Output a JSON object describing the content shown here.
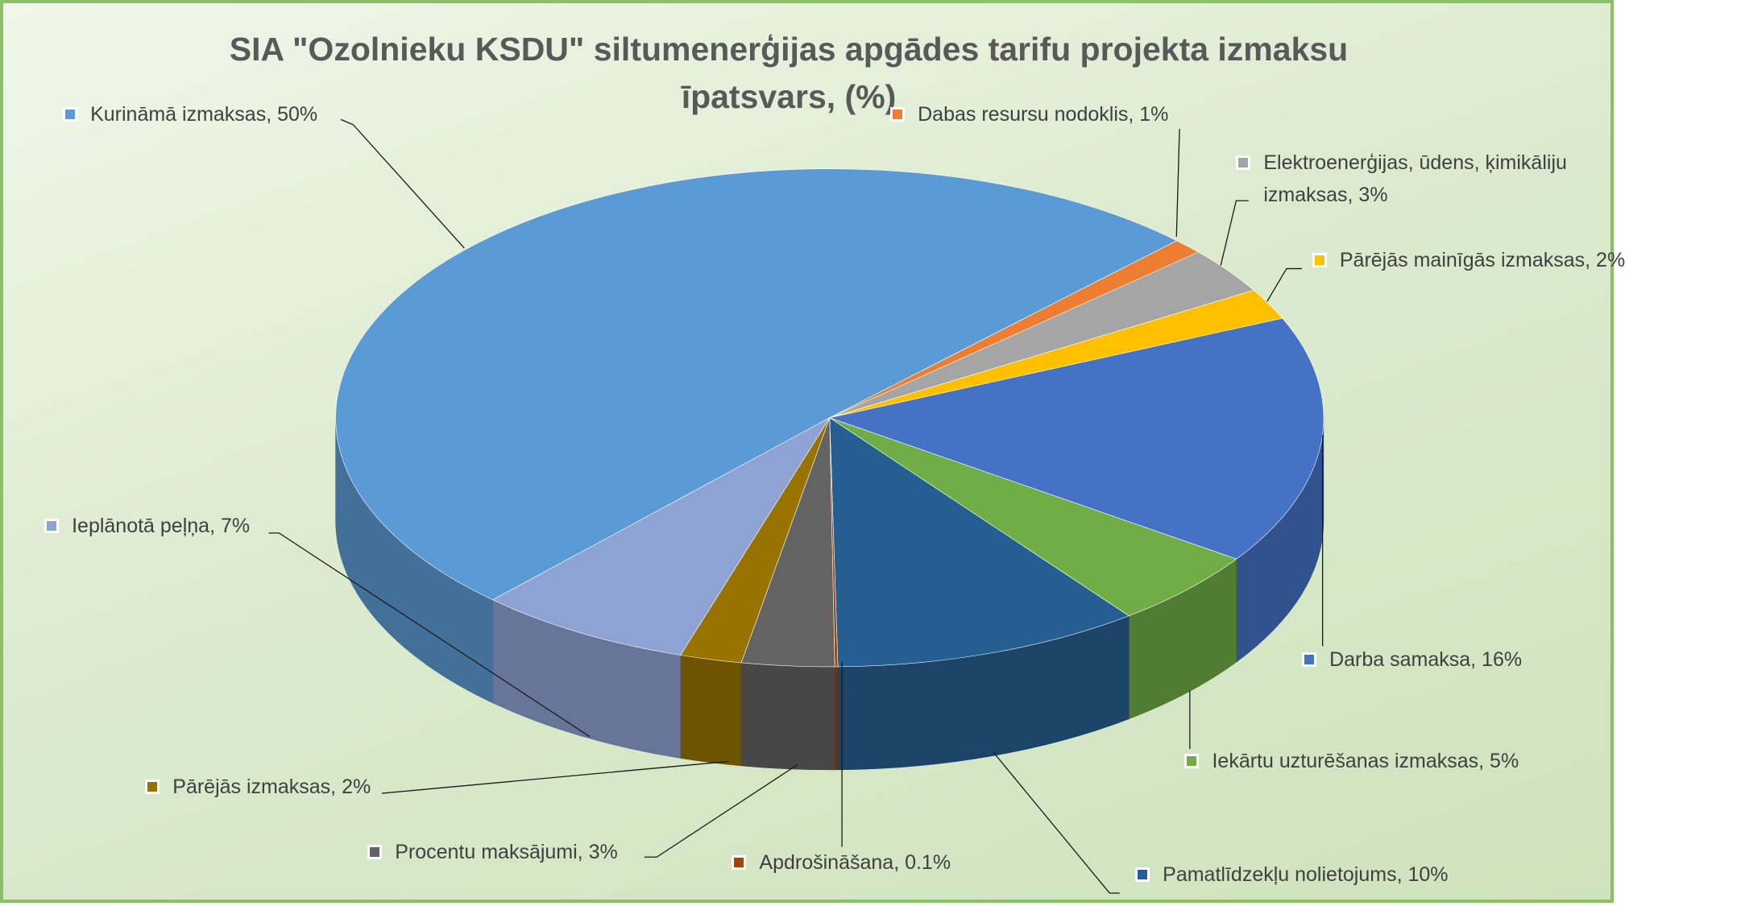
{
  "chart_data": {
    "type": "pie",
    "three_d": true,
    "title": "SIA \"Ozolnieku KSDU\" siltumenerģijas apgādes tarifu projekta izmaksu īpatsvars, (%)",
    "categories": [
      "Kurināmā izmaksas, 50%",
      "Dabas resursu nodoklis, 1%",
      "Elektroenerģijas, ūdens, ķimikāliju izmaksas, 3%",
      "Pārējās mainīgās izmaksas, 2%",
      "Darba samaksa, 16%",
      "Iekārtu uzturēšanas izmaksas, 5%",
      "Pamatlīdzekļu nolietojums, 10%",
      "Apdrošināšana, 0.1%",
      "Procentu maksājumi, 3%",
      "Pārējās izmaksas, 2%",
      "Ieplānotā peļņa, 7%"
    ],
    "values": [
      50,
      1,
      3,
      2,
      16,
      5,
      10,
      0.1,
      3,
      2,
      7
    ],
    "colors": [
      "#5b9bd5",
      "#ed7d31",
      "#a5a5a5",
      "#ffc000",
      "#4472c4",
      "#70ad47",
      "#255e91",
      "#9e480e",
      "#636363",
      "#997300",
      "#8fa2d4"
    ]
  }
}
